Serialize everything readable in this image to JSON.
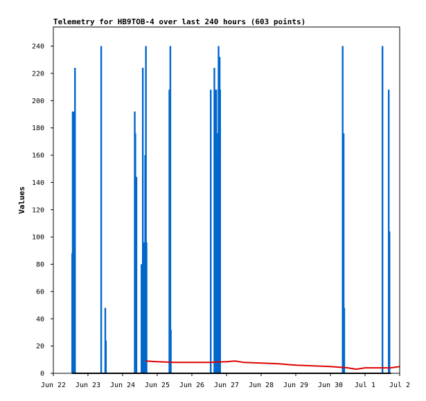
{
  "chart_data": {
    "type": "line",
    "title": "Telemetry for HB9TOB-4 over last 240 hours (603 points)",
    "ylabel": "Values",
    "xlabel": "",
    "ylim": [
      0,
      254
    ],
    "y_ticks": [
      0,
      20,
      40,
      60,
      80,
      100,
      120,
      140,
      160,
      180,
      200,
      220,
      240
    ],
    "x_range_days": [
      "2022-06-22",
      "2022-07-02"
    ],
    "x_ticks": [
      {
        "date": "2022-06-22",
        "label": "Jun 22"
      },
      {
        "date": "2022-06-23",
        "label": "Jun 23"
      },
      {
        "date": "2022-06-24",
        "label": "Jun 24"
      },
      {
        "date": "2022-06-25",
        "label": "Jun 25"
      },
      {
        "date": "2022-06-26",
        "label": "Jun 26"
      },
      {
        "date": "2022-06-27",
        "label": "Jun 27"
      },
      {
        "date": "2022-06-28",
        "label": "Jun 28"
      },
      {
        "date": "2022-06-29",
        "label": "Jun 29"
      },
      {
        "date": "2022-06-30",
        "label": "Jun 30"
      },
      {
        "date": "2022-07-01",
        "label": "Jul 1"
      },
      {
        "date": "2022-07-02",
        "label": "Jul 2"
      }
    ],
    "grid": false,
    "legend": "none",
    "series": [
      {
        "color": "#0066cc",
        "style": "impulse",
        "points": [
          [
            "2022-06-22 13:05",
            88
          ],
          [
            "2022-06-22 13:25",
            192
          ],
          [
            "2022-06-22 14:05",
            192
          ],
          [
            "2022-06-22 15:00",
            224
          ],
          [
            "2022-06-23 09:10",
            240
          ],
          [
            "2022-06-23 12:00",
            48
          ],
          [
            "2022-06-23 12:25",
            24
          ],
          [
            "2022-06-24 08:25",
            192
          ],
          [
            "2022-06-24 08:50",
            176
          ],
          [
            "2022-06-24 09:10",
            88
          ],
          [
            "2022-06-24 09:35",
            144
          ],
          [
            "2022-06-24 13:05",
            80
          ],
          [
            "2022-06-24 13:35",
            32
          ],
          [
            "2022-06-24 14:00",
            224
          ],
          [
            "2022-06-24 14:20",
            64
          ],
          [
            "2022-06-24 14:55",
            96
          ],
          [
            "2022-06-24 15:40",
            160
          ],
          [
            "2022-06-24 16:10",
            240
          ],
          [
            "2022-06-24 16:35",
            96
          ],
          [
            "2022-06-25 08:25",
            208
          ],
          [
            "2022-06-25 09:05",
            240
          ],
          [
            "2022-06-25 09:25",
            32
          ],
          [
            "2022-06-26 13:05",
            208
          ],
          [
            "2022-06-26 15:35",
            224
          ],
          [
            "2022-06-26 16:10",
            208
          ],
          [
            "2022-06-26 16:55",
            208
          ],
          [
            "2022-06-26 17:35",
            160
          ],
          [
            "2022-06-26 18:05",
            176
          ],
          [
            "2022-06-26 18:30",
            240
          ],
          [
            "2022-06-26 18:50",
            80
          ],
          [
            "2022-06-26 19:15",
            232
          ],
          [
            "2022-06-26 19:35",
            208
          ],
          [
            "2022-06-30 08:30",
            240
          ],
          [
            "2022-06-30 09:10",
            176
          ],
          [
            "2022-06-30 09:35",
            48
          ],
          [
            "2022-07-01 12:05",
            240
          ],
          [
            "2022-07-01 16:25",
            208
          ],
          [
            "2022-07-01 16:55",
            104
          ]
        ]
      },
      {
        "color": "#000000",
        "style": "line",
        "points": [
          [
            "2022-06-22 13:00",
            0
          ],
          [
            "2022-07-01 18:00",
            0
          ]
        ]
      },
      {
        "color": "#dd0000",
        "style": "line",
        "points": [
          [
            "2022-06-24 16:00",
            9
          ],
          [
            "2022-06-25 00:00",
            8.5
          ],
          [
            "2022-06-25 12:00",
            8
          ],
          [
            "2022-06-26 00:00",
            8
          ],
          [
            "2022-06-26 12:00",
            8
          ],
          [
            "2022-06-27 00:00",
            8.5
          ],
          [
            "2022-06-27 06:00",
            9
          ],
          [
            "2022-06-27 12:00",
            8
          ],
          [
            "2022-06-28 00:00",
            7.5
          ],
          [
            "2022-06-28 12:00",
            7
          ],
          [
            "2022-06-29 00:00",
            6
          ],
          [
            "2022-06-29 12:00",
            5.5
          ],
          [
            "2022-06-30 00:00",
            5
          ],
          [
            "2022-06-30 12:00",
            4
          ],
          [
            "2022-06-30 18:00",
            3
          ],
          [
            "2022-07-01 00:00",
            4
          ],
          [
            "2022-07-01 12:00",
            4
          ],
          [
            "2022-07-01 18:00",
            4
          ],
          [
            "2022-07-02 00:00",
            5
          ]
        ]
      }
    ]
  }
}
